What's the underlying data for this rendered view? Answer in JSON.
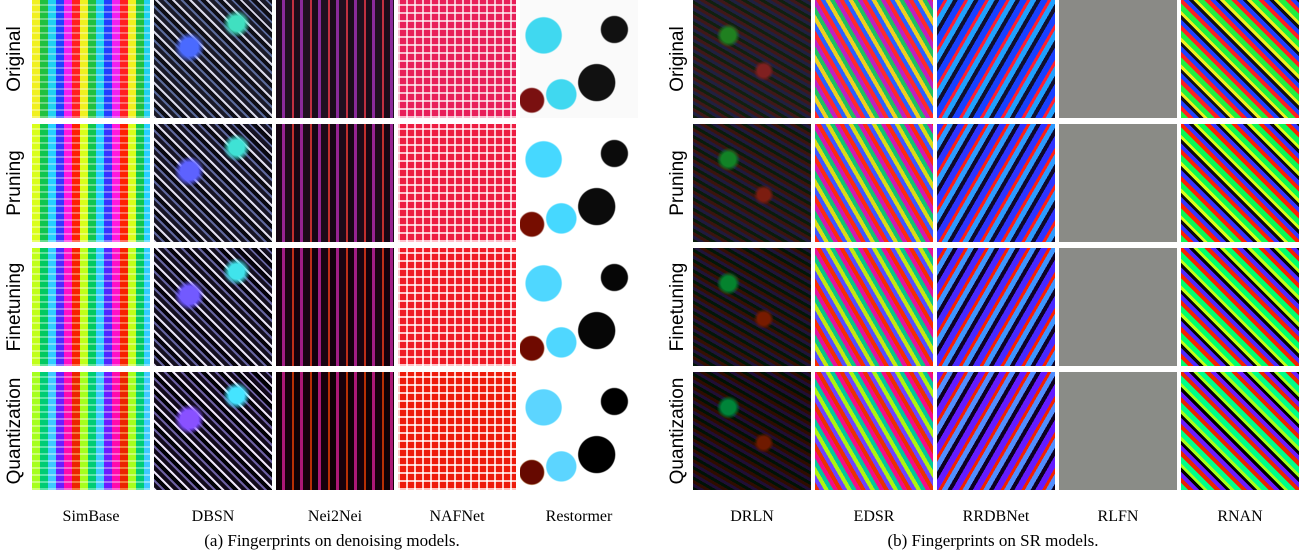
{
  "panels": [
    {
      "row_labels": [
        "Original",
        "Pruning",
        "Finetuning",
        "Quantization"
      ],
      "column_labels": [
        "SimBase",
        "DBSN",
        "Nei2Nei",
        "NAFNet",
        "Restormer"
      ],
      "caption": "(a) Fingerprints on denoising models."
    },
    {
      "row_labels": [
        "Original",
        "Pruning",
        "Finetuning",
        "Quantization"
      ],
      "column_labels": [
        "DRLN",
        "EDSR",
        "RRDBNet",
        "RLFN",
        "RNAN"
      ],
      "caption": "(b) Fingerprints on SR models."
    }
  ]
}
